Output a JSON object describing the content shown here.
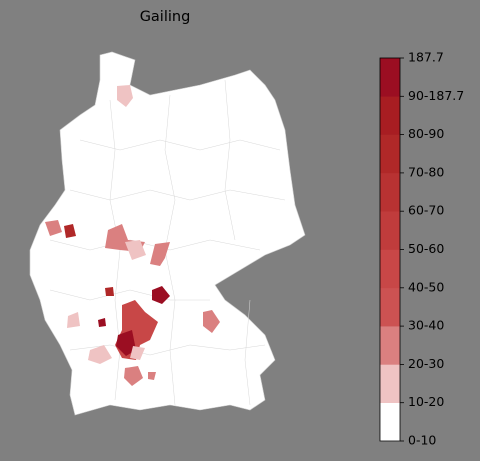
{
  "title": "Gailing",
  "colorbar": {
    "labels": [
      "0-10",
      "10-20",
      "20-30",
      "30-40",
      "40-50",
      "50-60",
      "60-70",
      "70-80",
      "80-90",
      "90-187.7",
      "187.7"
    ],
    "colors": [
      "#ffffff",
      "#efc3c3",
      "#da8080",
      "#cc5252",
      "#c84747",
      "#c03c3c",
      "#b83232",
      "#b02828",
      "#a81d22",
      "#9b0e22"
    ]
  }
}
